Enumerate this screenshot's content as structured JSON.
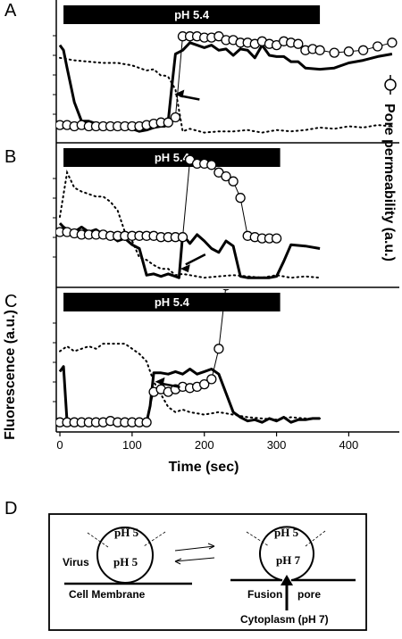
{
  "panels": {
    "a": "A",
    "b": "B",
    "c": "C",
    "d": "D"
  },
  "axes": {
    "y_left": "Fluorescence (a.u.)",
    "y_right": "Pore permeability (a.u.)",
    "x": "Time (sec)"
  },
  "chart_data": [
    {
      "type": "line",
      "panel": "A",
      "treatment_bar": {
        "label": "pH 5.4",
        "start": 5,
        "end": 360
      },
      "xlim": [
        -5,
        470
      ],
      "ylim": [
        0,
        1
      ],
      "series": [
        {
          "style": "thick-solid",
          "x": [
            0,
            5,
            10,
            20,
            30,
            40,
            50,
            60,
            70,
            80,
            90,
            100,
            110,
            120,
            130,
            140,
            145,
            150,
            155,
            160,
            170,
            180,
            190,
            200,
            210,
            220,
            230,
            240,
            250,
            260,
            270,
            280,
            290,
            300,
            310,
            320,
            330,
            340,
            360,
            380,
            400,
            420,
            440,
            460
          ],
          "y": [
            0.7,
            0.66,
            0.52,
            0.25,
            0.1,
            0.1,
            0.08,
            0.06,
            0.06,
            0.06,
            0.04,
            0.04,
            0.02,
            0.03,
            0.05,
            0.06,
            0.06,
            0.1,
            0.37,
            0.63,
            0.66,
            0.72,
            0.7,
            0.68,
            0.7,
            0.66,
            0.67,
            0.62,
            0.67,
            0.66,
            0.6,
            0.7,
            0.62,
            0.61,
            0.61,
            0.57,
            0.57,
            0.52,
            0.51,
            0.52,
            0.56,
            0.58,
            0.61,
            0.63
          ]
        },
        {
          "style": "dotted",
          "x": [
            0,
            20,
            40,
            60,
            80,
            100,
            120,
            130,
            140,
            145,
            150,
            160,
            170,
            180,
            200,
            220,
            240,
            260,
            280,
            300,
            320,
            340,
            360,
            380,
            400,
            420,
            440,
            460
          ],
          "y": [
            0.6,
            0.58,
            0.57,
            0.56,
            0.56,
            0.54,
            0.5,
            0.51,
            0.46,
            0.46,
            0.45,
            0.35,
            0.02,
            0.04,
            0.01,
            0.02,
            0.02,
            0.03,
            0.01,
            0.03,
            0.02,
            0.03,
            0.05,
            0.04,
            0.06,
            0.05,
            0.07,
            0.06
          ]
        },
        {
          "style": "open-circles",
          "x": [
            0,
            10,
            20,
            30,
            40,
            50,
            60,
            70,
            80,
            90,
            100,
            110,
            120,
            130,
            140,
            150,
            160,
            170,
            180,
            190,
            200,
            210,
            220,
            230,
            240,
            250,
            260,
            270,
            280,
            290,
            300,
            310,
            320,
            330,
            340,
            350,
            360,
            380,
            400,
            420,
            440,
            460
          ],
          "y": [
            0.07,
            0.07,
            0.06,
            0.07,
            0.06,
            0.06,
            0.06,
            0.06,
            0.06,
            0.06,
            0.06,
            0.06,
            0.07,
            0.08,
            0.09,
            0.09,
            0.13,
            0.77,
            0.77,
            0.77,
            0.76,
            0.76,
            0.77,
            0.74,
            0.74,
            0.72,
            0.72,
            0.71,
            0.73,
            0.71,
            0.7,
            0.73,
            0.72,
            0.71,
            0.66,
            0.67,
            0.66,
            0.64,
            0.65,
            0.66,
            0.69,
            0.72
          ]
        }
      ],
      "annotations": [
        {
          "type": "arrow",
          "points_to_x": 155
        }
      ]
    },
    {
      "type": "line",
      "panel": "B",
      "treatment_bar": {
        "label": "pH 5.4",
        "start": 5,
        "end": 305
      },
      "xlim": [
        -5,
        470
      ],
      "ylim": [
        0,
        1
      ],
      "series": [
        {
          "style": "thick-solid",
          "x": [
            0,
            5,
            10,
            20,
            30,
            40,
            50,
            60,
            70,
            80,
            90,
            100,
            110,
            120,
            130,
            140,
            150,
            160,
            165,
            170,
            180,
            190,
            200,
            210,
            220,
            230,
            240,
            250,
            260,
            270,
            280,
            290,
            300,
            310,
            320,
            340,
            360
          ],
          "y": [
            0.45,
            0.42,
            0.4,
            0.38,
            0.42,
            0.38,
            0.4,
            0.36,
            0.35,
            0.31,
            0.33,
            0.28,
            0.25,
            0.04,
            0.05,
            0.03,
            0.05,
            0.03,
            0.02,
            0.36,
            0.29,
            0.36,
            0.31,
            0.25,
            0.22,
            0.31,
            0.27,
            0.03,
            0.02,
            0.02,
            0.02,
            0.02,
            0.03,
            0.15,
            0.28,
            0.27,
            0.25
          ]
        },
        {
          "style": "dotted",
          "x": [
            0,
            10,
            20,
            30,
            40,
            50,
            60,
            70,
            80,
            90,
            100,
            110,
            120,
            130,
            140,
            150,
            160,
            170,
            180,
            200,
            220,
            240,
            260,
            280,
            300,
            320,
            340,
            360
          ],
          "y": [
            0.5,
            0.85,
            0.73,
            0.7,
            0.68,
            0.66,
            0.66,
            0.62,
            0.55,
            0.38,
            0.31,
            0.18,
            0.16,
            0.12,
            0.09,
            0.09,
            0.04,
            0.05,
            0.04,
            0.02,
            0.03,
            0.04,
            0.03,
            0.02,
            0.04,
            0.02,
            0.03,
            0.02
          ]
        },
        {
          "style": "open-circles",
          "x": [
            0,
            10,
            20,
            30,
            40,
            50,
            60,
            70,
            80,
            90,
            100,
            110,
            120,
            130,
            140,
            150,
            160,
            170,
            180,
            190,
            200,
            210,
            220,
            230,
            240,
            250,
            260,
            270,
            280,
            290,
            300
          ],
          "y": [
            0.38,
            0.38,
            0.37,
            0.36,
            0.36,
            0.36,
            0.36,
            0.35,
            0.35,
            0.35,
            0.35,
            0.35,
            0.35,
            0.35,
            0.34,
            0.34,
            0.34,
            0.34,
            0.95,
            0.92,
            0.92,
            0.91,
            0.85,
            0.82,
            0.78,
            0.65,
            0.35,
            0.34,
            0.33,
            0.33,
            0.33
          ]
        }
      ],
      "annotations": [
        {
          "type": "arrow",
          "points_to_x": 163
        }
      ]
    },
    {
      "type": "line",
      "panel": "C",
      "treatment_bar": {
        "label": "pH 5.4",
        "start": 5,
        "end": 305
      },
      "xlim": [
        -5,
        470
      ],
      "ylim": [
        0,
        1
      ],
      "series": [
        {
          "style": "thick-solid",
          "x": [
            0,
            5,
            10,
            20,
            30,
            40,
            50,
            60,
            70,
            80,
            90,
            100,
            110,
            120,
            125,
            130,
            140,
            150,
            160,
            170,
            180,
            190,
            200,
            210,
            220,
            230,
            240,
            250,
            260,
            270,
            280,
            290,
            300,
            310,
            320,
            330,
            340,
            350,
            360
          ],
          "y": [
            0.42,
            0.46,
            0.02,
            0.02,
            0.02,
            0.01,
            0.02,
            0.02,
            0.03,
            0.02,
            0.02,
            0.03,
            0.02,
            0.02,
            0.15,
            0.41,
            0.41,
            0.4,
            0.42,
            0.4,
            0.44,
            0.4,
            0.42,
            0.44,
            0.4,
            0.25,
            0.1,
            0.06,
            0.03,
            0.04,
            0.02,
            0.05,
            0.03,
            0.06,
            0.02,
            0.04,
            0.04,
            0.05,
            0.05
          ]
        },
        {
          "style": "dotted",
          "x": [
            0,
            10,
            20,
            30,
            40,
            50,
            60,
            70,
            80,
            90,
            100,
            110,
            120,
            130,
            140,
            150,
            160,
            170,
            180,
            200,
            220,
            240,
            260,
            280,
            300,
            320,
            340,
            360
          ],
          "y": [
            0.58,
            0.62,
            0.58,
            0.6,
            0.62,
            0.6,
            0.64,
            0.64,
            0.64,
            0.64,
            0.6,
            0.56,
            0.5,
            0.34,
            0.24,
            0.14,
            0.1,
            0.12,
            0.1,
            0.08,
            0.1,
            0.08,
            0.06,
            0.05,
            0.04,
            0.06,
            0.05,
            0.05
          ]
        },
        {
          "style": "open-circles",
          "x": [
            0,
            10,
            20,
            30,
            40,
            50,
            60,
            70,
            80,
            90,
            100,
            110,
            120,
            130,
            140,
            150,
            160,
            170,
            180,
            190,
            200,
            210,
            220,
            230
          ],
          "y": [
            0.02,
            0.02,
            0.02,
            0.02,
            0.02,
            0.02,
            0.02,
            0.03,
            0.02,
            0.02,
            0.02,
            0.02,
            0.02,
            0.26,
            0.28,
            0.26,
            0.28,
            0.3,
            0.29,
            0.3,
            0.32,
            0.36,
            0.6,
            1.1
          ]
        }
      ],
      "annotations": [
        {
          "type": "arrow",
          "points_to_x": 128
        }
      ]
    }
  ],
  "x_ticks": [
    0,
    100,
    200,
    300,
    400
  ],
  "right_legend_marker": "open-circle-on-line",
  "diagram": {
    "left": {
      "top": "pH 5",
      "inside": "pH 5",
      "virus": "Virus",
      "membrane": "Cell Membrane"
    },
    "right": {
      "top": "pH 5",
      "inside": "pH 7",
      "fusion": "Fusion",
      "pore": "pore",
      "cytoplasm": "Cytoplasm (pH 7)"
    },
    "equilibrium": "reversible"
  },
  "colors": {
    "ink": "#000000",
    "background": "#ffffff"
  }
}
